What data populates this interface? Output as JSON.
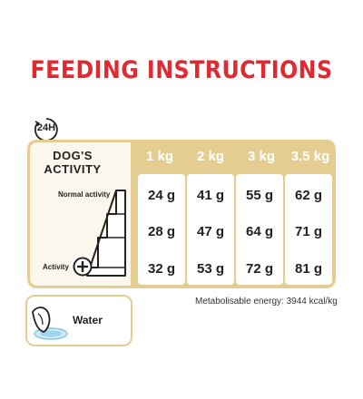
{
  "title": "FEEDING INSTRUCTIONS",
  "clock_label": "24H",
  "activity_header_line1": "DOG'S",
  "activity_header_line2": "ACTIVITY",
  "weights": [
    "1 kg",
    "2 kg",
    "3 kg",
    "3.5 kg"
  ],
  "rows": [
    [
      "24 g",
      "41 g",
      "55 g",
      "62 g"
    ],
    [
      "28 g",
      "47 g",
      "64 g",
      "71 g"
    ],
    [
      "32 g",
      "53 g",
      "72 g",
      "81 g"
    ]
  ],
  "activity_levels": {
    "normal": "Normal activity",
    "high": "Activity"
  },
  "energy_note": "Metabolisable energy: 3944 kcal/kg",
  "water_label": "Water",
  "colors": {
    "title_red": "#e02a32",
    "panel_gold": "#e5cd92",
    "panel_light": "#fbf7ec"
  },
  "icons": [
    "clock-24h-icon",
    "activity-stairs-icon",
    "plus-circle-icon",
    "water-bowl-icon"
  ]
}
